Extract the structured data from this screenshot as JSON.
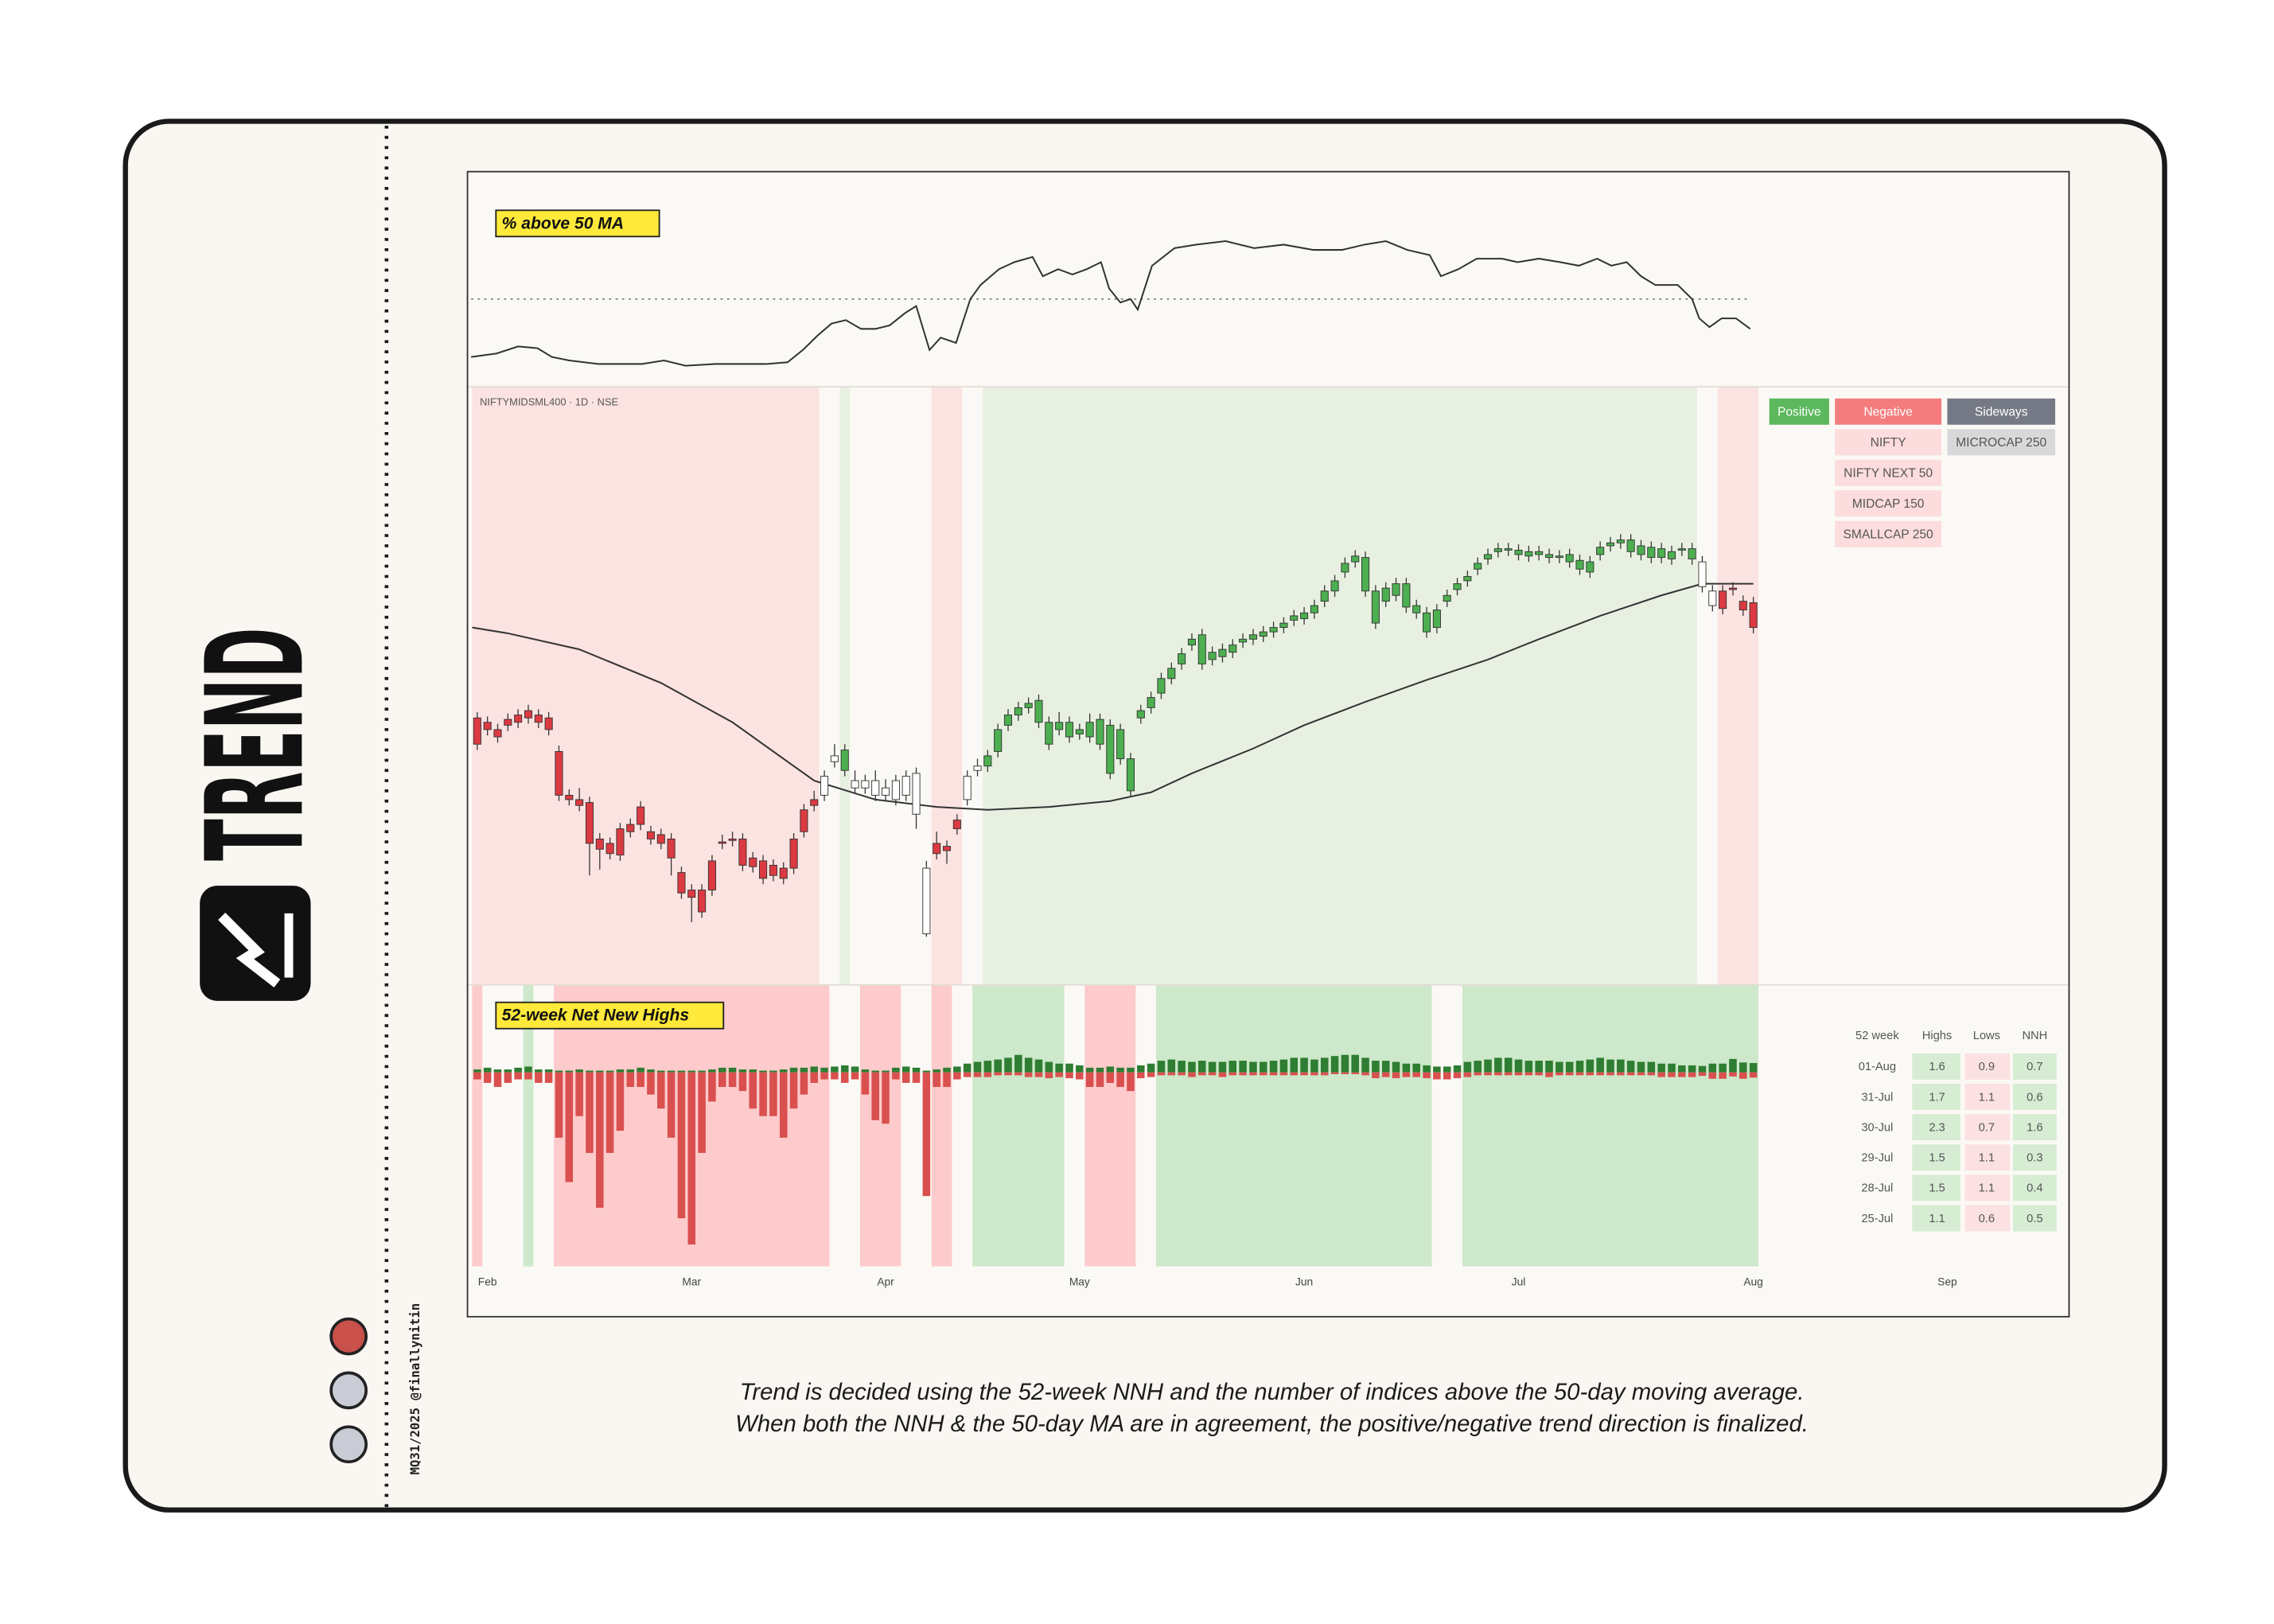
{
  "page": {
    "logo_text": "TREND",
    "credit": "MQ31/2025 @finallynitin",
    "caption": [
      "Trend is decided using the 52-week NNH and the number of indices above the 50-day moving average.",
      "When both the NNH & the 50-day MA are in agreement, the positive/negative trend direction is finalized."
    ]
  },
  "chart_data": [
    {
      "type": "line",
      "title": "% above 50 MA",
      "color": "#333333",
      "reference": 50,
      "xlim": [
        -0.6,
        156
      ],
      "ylim": [
        0,
        123
      ],
      "x": [
        -0.6,
        1.9,
        4,
        5.9,
        7.3,
        9,
        11.9,
        14,
        16.1,
        18.3,
        20.4,
        23.3,
        26.1,
        28.3,
        30.4,
        31.9,
        33.3,
        34.7,
        36.1,
        37.6,
        39,
        40.4,
        41.9,
        43,
        44.3,
        45.4,
        46.9,
        48.3,
        49.3,
        51.1,
        52.6,
        54.4,
        55.4,
        56.9,
        58.3,
        59.7,
        61.1,
        61.9,
        63,
        64,
        64.7,
        66.1,
        68.3,
        70.4,
        73.3,
        76.1,
        79,
        81.9,
        84.7,
        86.9,
        89,
        91.1,
        93.3,
        94.4,
        96.1,
        97.9,
        100.4,
        101.9,
        104,
        106.1,
        107.9,
        109.7,
        111.1,
        112.6,
        114,
        115.4,
        117.6,
        119,
        119.7,
        120.7,
        121.9,
        123.3,
        124.7
      ],
      "values": [
        17,
        19,
        23,
        22,
        17,
        15,
        13,
        13,
        13,
        15,
        12,
        13,
        13,
        13,
        14,
        21,
        29,
        36,
        38,
        33,
        33,
        35,
        42,
        46,
        21,
        28,
        25,
        50,
        58,
        67,
        71,
        74,
        63,
        67,
        64,
        67,
        71,
        56,
        48,
        50,
        44,
        69,
        79,
        81,
        83,
        79,
        81,
        78,
        78,
        81,
        83,
        78,
        75,
        63,
        67,
        73,
        73,
        71,
        73,
        71,
        69,
        73,
        69,
        71,
        63,
        58,
        58,
        50,
        39,
        34,
        39,
        39,
        33
      ]
    },
    {
      "type": "candlestick",
      "subtitle": "NIFTYMIDSML400 · 1D · NSE",
      "xlim": [
        -0.6,
        156
      ],
      "ylim": [
        25,
        435
      ],
      "open": [
        208,
        205,
        200,
        203,
        210,
        213,
        210,
        208,
        185,
        155,
        152,
        150,
        125,
        122,
        132,
        135,
        147,
        130,
        128,
        125,
        102,
        90,
        90,
        110,
        123,
        125,
        125,
        112,
        110,
        107,
        105,
        125,
        145,
        152,
        155,
        178,
        172,
        165,
        160,
        165,
        160,
        165,
        168,
        170,
        105,
        122,
        120,
        138,
        152,
        172,
        175,
        185,
        203,
        210,
        215,
        220,
        205,
        205,
        205,
        200,
        205,
        207,
        203,
        200,
        180,
        208,
        215,
        225,
        235,
        245,
        258,
        265,
        248,
        250,
        253,
        260,
        262,
        264,
        267,
        270,
        275,
        276,
        280,
        288,
        295,
        308,
        315,
        318,
        295,
        288,
        300,
        300,
        285,
        280,
        282,
        288,
        296,
        302,
        310,
        317,
        322,
        324,
        323,
        322,
        322,
        320,
        319,
        320,
        316,
        308,
        320,
        326,
        328,
        330,
        326,
        325,
        324,
        322,
        324,
        324,
        315,
        295,
        295,
        297,
        288,
        287
      ],
      "high": [
        212,
        209,
        204,
        211,
        214,
        217,
        214,
        212,
        189,
        159,
        160,
        154,
        129,
        126,
        136,
        139,
        151,
        134,
        132,
        129,
        106,
        94,
        94,
        114,
        128,
        130,
        129,
        116,
        114,
        111,
        109,
        129,
        149,
        158,
        172,
        190,
        190,
        172,
        169,
        172,
        166,
        169,
        172,
        174,
        110,
        130,
        124,
        142,
        172,
        180,
        186,
        204,
        214,
        219,
        222,
        224,
        209,
        212,
        209,
        204,
        211,
        211,
        207,
        204,
        184,
        217,
        226,
        239,
        246,
        256,
        266,
        269,
        257,
        259,
        262,
        266,
        269,
        271,
        274,
        277,
        282,
        284,
        289,
        299,
        306,
        318,
        323,
        322,
        299,
        301,
        304,
        304,
        289,
        284,
        286,
        296,
        304,
        309,
        318,
        324,
        328,
        328,
        327,
        326,
        326,
        324,
        323,
        324,
        320,
        319,
        329,
        332,
        334,
        334,
        330,
        329,
        328,
        326,
        328,
        328,
        319,
        299,
        299,
        301,
        292,
        291
      ],
      "low": [
        186,
        196,
        191,
        199,
        201,
        204,
        201,
        196,
        151,
        148,
        144,
        100,
        104,
        111,
        110,
        126,
        131,
        121,
        118,
        100,
        84,
        68,
        71,
        86,
        118,
        120,
        103,
        102,
        94,
        96,
        94,
        101,
        126,
        144,
        151,
        174,
        168,
        156,
        156,
        151,
        151,
        148,
        151,
        132,
        58,
        111,
        108,
        128,
        148,
        168,
        171,
        181,
        199,
        206,
        211,
        201,
        186,
        196,
        191,
        193,
        191,
        186,
        166,
        176,
        154,
        204,
        211,
        221,
        231,
        241,
        254,
        241,
        244,
        246,
        249,
        256,
        258,
        260,
        263,
        266,
        271,
        272,
        276,
        284,
        291,
        304,
        311,
        291,
        269,
        284,
        288,
        280,
        276,
        263,
        266,
        284,
        292,
        298,
        306,
        313,
        318,
        319,
        316,
        315,
        316,
        314,
        314,
        311,
        306,
        304,
        316,
        322,
        324,
        318,
        316,
        314,
        314,
        313,
        319,
        313,
        294,
        281,
        279,
        292,
        278,
        266
      ],
      "close": [
        190,
        200,
        195,
        207,
        205,
        208,
        205,
        200,
        155,
        152,
        148,
        122,
        118,
        115,
        114,
        130,
        135,
        125,
        122,
        112,
        88,
        85,
        75,
        90,
        122,
        124,
        107,
        106,
        98,
        100,
        98,
        105,
        130,
        148,
        168,
        182,
        186,
        160,
        165,
        155,
        155,
        152,
        155,
        142,
        60,
        115,
        117,
        132,
        168,
        175,
        182,
        200,
        210,
        215,
        218,
        205,
        190,
        200,
        195,
        197,
        195,
        190,
        170,
        180,
        158,
        213,
        222,
        235,
        242,
        252,
        262,
        245,
        253,
        255,
        258,
        262,
        265,
        267,
        270,
        273,
        278,
        280,
        285,
        295,
        302,
        314,
        319,
        295,
        273,
        297,
        292,
        284,
        280,
        267,
        270,
        292,
        300,
        305,
        314,
        320,
        324,
        323,
        320,
        319,
        320,
        318,
        318,
        315,
        310,
        315,
        325,
        328,
        330,
        322,
        320,
        318,
        318,
        317,
        323,
        317,
        298,
        285,
        283,
        296,
        282,
        270
      ],
      "candle_colors": {
        "positive": "#4caf50",
        "negative": "#dc3a42",
        "neutral": "#ffffff"
      },
      "band_colors": {
        "positive": "#e8f1e1",
        "negative": "#fbe3e1"
      },
      "bands": [
        {
          "start": 0,
          "end": 33,
          "state": "negative"
        },
        {
          "start": 36,
          "end": 36,
          "state": "positive"
        },
        {
          "start": 45,
          "end": 47,
          "state": "negative"
        },
        {
          "start": 50,
          "end": 119,
          "state": "positive"
        },
        {
          "start": 122,
          "end": 125,
          "state": "negative"
        }
      ],
      "ma": {
        "color": "#333333",
        "x": [
          -0.5,
          3,
          10,
          18,
          25,
          29,
          33,
          39,
          45,
          50,
          56,
          62,
          66,
          70,
          76,
          81,
          87,
          93,
          99,
          104,
          110,
          116,
          120,
          125
        ],
        "values": [
          270,
          266,
          255,
          232,
          205,
          185,
          165,
          152,
          147,
          145,
          147,
          151,
          157,
          170,
          187,
          203,
          219,
          234,
          248,
          262,
          278,
          292,
          300,
          300
        ]
      },
      "trend_table": {
        "header": [
          "Positive",
          "Negative",
          "Sideways"
        ],
        "header_colors": [
          "#5cb85c",
          "#f47c7c",
          "#767a86"
        ],
        "cell_colors": [
          "#e2f1dc",
          "#fcdcdc",
          "#d8d8da"
        ],
        "columns": [
          [],
          [
            "NIFTY",
            "NIFTY NEXT 50",
            "MIDCAP 150",
            "SMALLCAP 250"
          ],
          [
            "MICROCAP 250"
          ]
        ]
      }
    },
    {
      "type": "bar",
      "title": "52-week Net New Highs",
      "xlim": [
        -0.6,
        156
      ],
      "ylim": [
        -33.25,
        15
      ],
      "xticks": [
        {
          "value": 1,
          "label": "Feb"
        },
        {
          "value": 21,
          "label": "Mar"
        },
        {
          "value": 40,
          "label": "Apr"
        },
        {
          "value": 59,
          "label": "May"
        },
        {
          "value": 81,
          "label": "Jun"
        },
        {
          "value": 102,
          "label": "Jul"
        },
        {
          "value": 125,
          "label": "Aug"
        },
        {
          "value": 144,
          "label": "Sep"
        }
      ],
      "band_colors": {
        "positive": "#cde8ca",
        "negative": "#fdcbcb"
      },
      "bands": [
        {
          "start": 0,
          "end": 0,
          "state": "negative"
        },
        {
          "start": 5,
          "end": 5,
          "state": "positive"
        },
        {
          "start": 8,
          "end": 34,
          "state": "negative"
        },
        {
          "start": 38,
          "end": 41,
          "state": "negative"
        },
        {
          "start": 45,
          "end": 46,
          "state": "negative"
        },
        {
          "start": 49,
          "end": 57,
          "state": "positive"
        },
        {
          "start": 60,
          "end": 64,
          "state": "negative"
        },
        {
          "start": 67,
          "end": 93,
          "state": "positive"
        },
        {
          "start": 97,
          "end": 125,
          "state": "positive"
        }
      ],
      "series": [
        {
          "color": "#2e7d32",
          "values": [
            0.5,
            0.8,
            0.5,
            0.5,
            0.8,
            1,
            0.5,
            0.5,
            0.3,
            0.3,
            0.5,
            0.3,
            0.3,
            0.3,
            0.5,
            0.5,
            0.8,
            0.5,
            0.3,
            0.3,
            0.3,
            0.3,
            0.3,
            0.5,
            0.8,
            0.8,
            0.5,
            0.5,
            0.3,
            0.3,
            0.5,
            0.8,
            0.8,
            1,
            0.8,
            1,
            1.2,
            1,
            0.5,
            0.3,
            0.3,
            0.8,
            1,
            0.8,
            0.3,
            0.5,
            0.8,
            1,
            1.5,
            1.8,
            2,
            2.2,
            2.5,
            3,
            2.5,
            2.2,
            1.8,
            1.5,
            1.5,
            1.2,
            0.8,
            0.8,
            1,
            0.8,
            0.8,
            1.2,
            1.5,
            2,
            2.2,
            2,
            1.8,
            2,
            1.8,
            1.8,
            2,
            2,
            1.8,
            1.8,
            2,
            2.2,
            2.5,
            2.5,
            2.2,
            2.5,
            2.8,
            3,
            3,
            2.5,
            2,
            2,
            1.8,
            1.5,
            1.5,
            1.2,
            1,
            1,
            1.2,
            1.8,
            2,
            2.2,
            2.5,
            2.5,
            2.2,
            2,
            2,
            2,
            1.8,
            1.8,
            2,
            2.2,
            2.5,
            2.2,
            2.2,
            2,
            1.8,
            1.8,
            1.5,
            1.5,
            1.2,
            1.2,
            1.1,
            1.5,
            1.5,
            2.3,
            1.7,
            1.6
          ]
        },
        {
          "color": "#d9504f",
          "values": [
            -1.2,
            -1.8,
            -2.5,
            -1.8,
            -1.2,
            -1.2,
            -1.8,
            -1.8,
            -11.2,
            -18.8,
            -7.5,
            -13.8,
            -23.2,
            -13.8,
            -10,
            -2.5,
            -2.5,
            -3.8,
            -6.2,
            -11.2,
            -25,
            -29.5,
            -13.8,
            -5,
            -2.5,
            -2.5,
            -3.2,
            -6.2,
            -7.5,
            -7.5,
            -11.2,
            -6.2,
            -3.8,
            -1.8,
            -1.2,
            -1.2,
            -1.8,
            -1.2,
            -3.8,
            -8.2,
            -8.8,
            -1.2,
            -1.8,
            -1.8,
            -21.2,
            -2.5,
            -2.5,
            -1.2,
            -0.8,
            -0.8,
            -0.8,
            -0.5,
            -0.5,
            -0.5,
            -0.8,
            -0.8,
            -1,
            -0.8,
            -1,
            -1.2,
            -2.5,
            -2.5,
            -1.8,
            -2.5,
            -3.2,
            -1,
            -0.8,
            -0.5,
            -0.5,
            -0.5,
            -0.8,
            -0.5,
            -0.5,
            -0.8,
            -0.5,
            -0.5,
            -0.5,
            -0.5,
            -0.5,
            -0.5,
            -0.5,
            -0.5,
            -0.5,
            -0.5,
            -0.3,
            -0.3,
            -0.3,
            -0.5,
            -1,
            -0.8,
            -1,
            -0.8,
            -0.8,
            -1,
            -1.2,
            -1.2,
            -1,
            -0.8,
            -0.5,
            -0.5,
            -0.5,
            -0.5,
            -0.5,
            -0.5,
            -0.5,
            -0.8,
            -0.5,
            -0.5,
            -0.5,
            -0.5,
            -0.5,
            -0.5,
            -0.5,
            -0.5,
            -0.5,
            -0.5,
            -0.8,
            -0.8,
            -0.8,
            -0.8,
            -0.6,
            -1.1,
            -1.1,
            -0.7,
            -1.1,
            -0.9
          ]
        }
      ],
      "table": {
        "header": [
          "52 week",
          "Highs",
          "Lows",
          "NNH"
        ],
        "cell_colors": [
          "#d6edd4",
          "#fbe1e1",
          "#d6edd4"
        ],
        "rows": [
          [
            "01-Aug",
            1.6,
            0.9,
            0.7
          ],
          [
            "31-Jul",
            1.7,
            1.1,
            0.6
          ],
          [
            "30-Jul",
            2.3,
            0.7,
            1.6
          ],
          [
            "29-Jul",
            1.5,
            1.1,
            0.3
          ],
          [
            "28-Jul",
            1.5,
            1.1,
            0.4
          ],
          [
            "25-Jul",
            1.1,
            0.6,
            0.5
          ]
        ]
      }
    }
  ]
}
